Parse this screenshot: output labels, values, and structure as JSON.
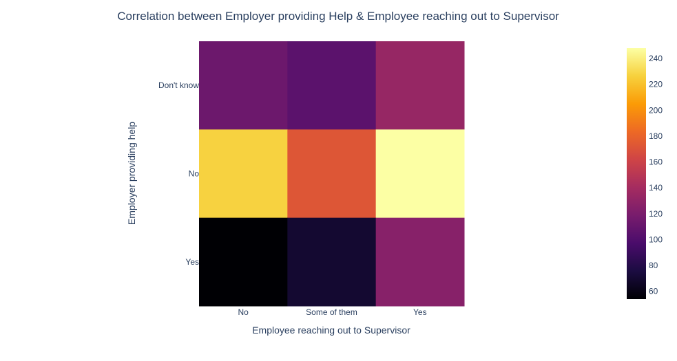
{
  "chart_data": {
    "type": "heatmap",
    "title": "Correlation between Employer providing Help & Employee reaching out to Supervisor",
    "xlabel": "Employee reaching out to Supervisor",
    "ylabel": "Employer providing help",
    "x_categories": [
      "No",
      "Some of them",
      "Yes"
    ],
    "y_categories": [
      "Don't know",
      "No",
      "Yes"
    ],
    "z": [
      [
        113,
        105,
        133
      ],
      [
        227,
        172,
        248
      ],
      [
        54,
        70,
        126
      ]
    ],
    "colorscale": "Inferno",
    "colorbar": {
      "range": [
        54,
        248
      ],
      "ticks": [
        60,
        80,
        100,
        120,
        140,
        160,
        180,
        200,
        220,
        240
      ]
    }
  },
  "colors": {
    "text": "#2a3f5f",
    "background": "#ffffff",
    "inferno": [
      "#000004",
      "#1b0c41",
      "#4a0c6b",
      "#781c6d",
      "#a52c60",
      "#cf4446",
      "#ed6925",
      "#fb9b06",
      "#f7d13d",
      "#fcffa4"
    ]
  }
}
